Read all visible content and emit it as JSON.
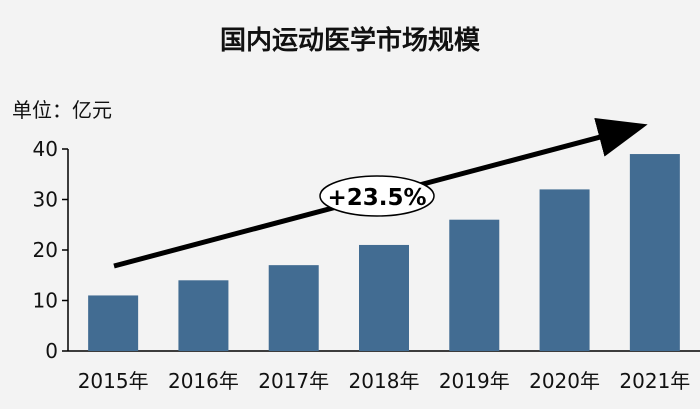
{
  "chart_data": {
    "type": "bar",
    "title": "国内运动医学市场规模",
    "unit_label": "单位：亿元",
    "categories": [
      "2015年",
      "2016年",
      "2017年",
      "2018年",
      "2019年",
      "2020年",
      "2021年"
    ],
    "values": [
      11,
      14,
      17,
      21,
      26,
      32,
      39
    ],
    "ylim": [
      0,
      40
    ],
    "yticks": [
      0,
      10,
      20,
      30,
      40
    ],
    "bar_color": "#426c92",
    "annotation": "+23.5%",
    "grid": false,
    "legend": "none"
  }
}
